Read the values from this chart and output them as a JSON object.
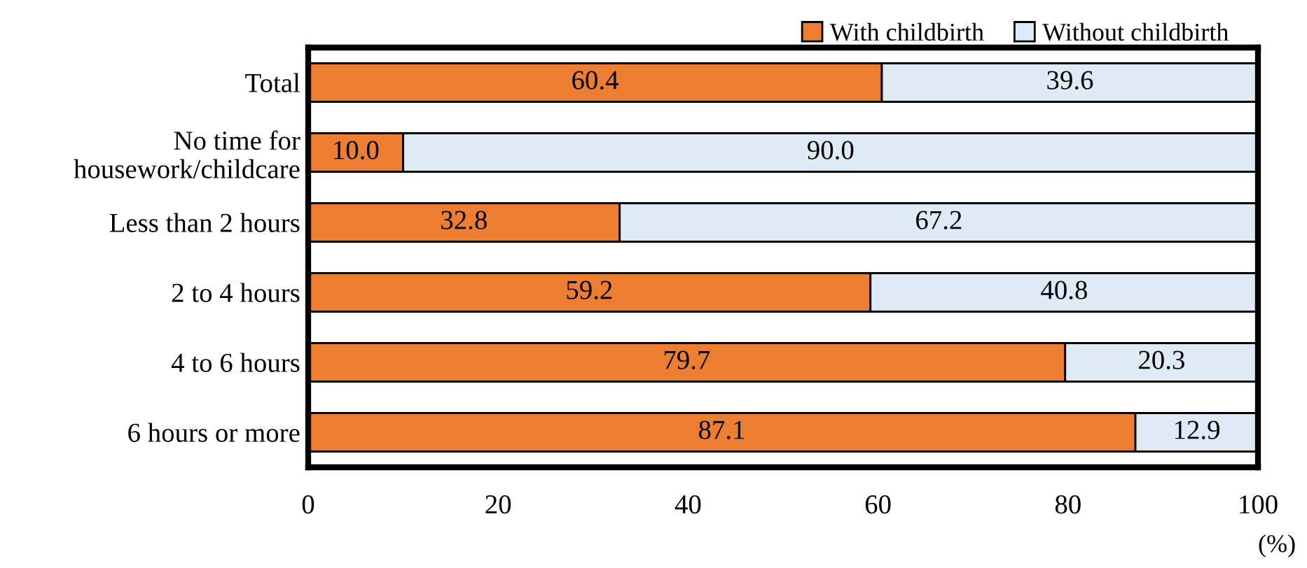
{
  "chart_data": {
    "type": "bar",
    "orientation": "horizontal",
    "stacked": true,
    "xlabel": "(%)",
    "categories": [
      "Total",
      "No time for\nhousework/childcare",
      "Less than 2 hours",
      "2 to 4 hours",
      "4 to 6 hours",
      "6 hours or more"
    ],
    "series": [
      {
        "name": "With childbirth",
        "color": "#ed7d31",
        "values": [
          60.4,
          10.0,
          32.8,
          59.2,
          79.7,
          87.1
        ],
        "value_labels": [
          "60.4",
          "10.0",
          "32.8",
          "59.2",
          "79.7",
          "87.1"
        ]
      },
      {
        "name": "Without childbirth",
        "color": "#deebf7",
        "values": [
          39.6,
          90.0,
          67.2,
          40.8,
          20.3,
          12.9
        ],
        "value_labels": [
          "39.6",
          "90.0",
          "67.2",
          "40.8",
          "20.3",
          "12.9"
        ]
      }
    ],
    "xlim": [
      0,
      100
    ],
    "xticks": [
      0,
      20,
      40,
      60,
      80,
      100
    ],
    "legend": "top right",
    "grid": false
  }
}
